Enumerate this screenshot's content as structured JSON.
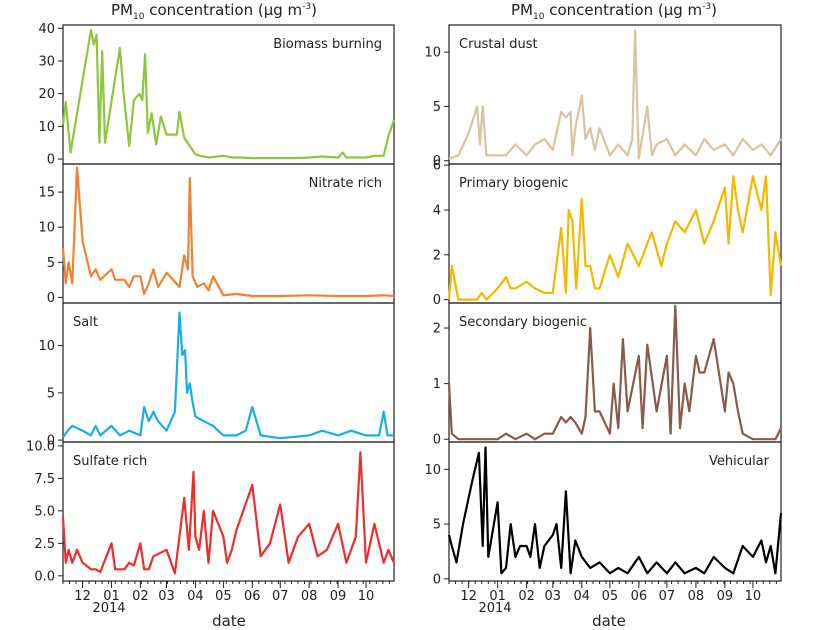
{
  "column_titles": [
    {
      "main": "PM",
      "sub": "10",
      "rest": " concentration (µg m",
      "sup": "-3",
      "close": ")"
    },
    {
      "main": "PM",
      "sub": "10",
      "rest": " concentration (µg m",
      "sup": "-3",
      "close": ")"
    }
  ],
  "x_axis": {
    "label": "date",
    "ticks": [
      "12",
      "01",
      "02",
      "03",
      "04",
      "05",
      "06",
      "07",
      "08",
      "09",
      "10"
    ],
    "year_label": "2014",
    "range": [
      "2013-11-10",
      "2014-10-31"
    ]
  },
  "chart_data": [
    {
      "type": "line",
      "title": "Biomass burning",
      "color": "#8dc63f",
      "ylim": [
        -1.5,
        41
      ],
      "yticks": [
        0,
        10,
        20,
        30,
        40
      ],
      "ytick_labels": [
        "0",
        "10",
        "20",
        "30",
        "40"
      ],
      "series": [
        {
          "x": [
            "2013-11-10",
            "2013-11-13",
            "2013-11-18",
            "2013-12-10",
            "2013-12-13",
            "2013-12-16",
            "2013-12-19",
            "2013-12-22",
            "2013-12-25",
            "2014-01-10",
            "2014-01-14",
            "2014-01-20",
            "2014-01-25",
            "2014-01-31",
            "2014-02-03",
            "2014-02-06",
            "2014-02-09",
            "2014-02-13",
            "2014-02-18",
            "2014-02-23",
            "2014-03-01",
            "2014-03-08",
            "2014-03-12",
            "2014-03-15",
            "2014-03-20",
            "2014-04-01",
            "2014-04-06",
            "2014-04-15",
            "2014-05-01",
            "2014-05-10",
            "2014-05-20",
            "2014-06-01",
            "2014-06-15",
            "2014-07-01",
            "2014-07-15",
            "2014-08-01",
            "2014-08-15",
            "2014-09-01",
            "2014-09-06",
            "2014-09-10",
            "2014-09-20",
            "2014-10-01",
            "2014-10-10",
            "2014-10-20",
            "2014-10-25",
            "2014-10-31"
          ],
          "y": [
            10.5,
            17.5,
            2,
            39.5,
            35,
            38,
            5,
            33,
            5,
            34,
            20,
            4,
            18,
            20,
            18,
            32,
            8,
            14,
            4.5,
            13,
            7.5,
            7.5,
            7.5,
            14.5,
            6.5,
            1.5,
            1,
            0.5,
            1,
            0.5,
            0.5,
            0.3,
            0.3,
            0.3,
            0.3,
            0.5,
            0.8,
            0.5,
            2,
            0.5,
            0.5,
            0.5,
            1,
            1,
            7,
            12
          ]
        }
      ]
    },
    {
      "type": "line",
      "title": "Nitrate rich",
      "color": "#f08234",
      "ylim": [
        -0.8,
        19
      ],
      "yticks": [
        0,
        5,
        10,
        15
      ],
      "ytick_labels": [
        "0",
        "5",
        "10",
        "15"
      ],
      "series": [
        {
          "x": [
            "2013-11-10",
            "2013-11-13",
            "2013-11-16",
            "2013-11-20",
            "2013-11-25",
            "2013-12-01",
            "2013-12-10",
            "2013-12-15",
            "2013-12-20",
            "2014-01-01",
            "2014-01-05",
            "2014-01-15",
            "2014-01-20",
            "2014-01-25",
            "2014-02-01",
            "2014-02-05",
            "2014-02-10",
            "2014-02-15",
            "2014-02-20",
            "2014-03-01",
            "2014-03-15",
            "2014-03-20",
            "2014-03-24",
            "2014-03-26",
            "2014-03-29",
            "2014-04-03",
            "2014-04-10",
            "2014-04-15",
            "2014-04-20",
            "2014-05-01",
            "2014-05-15",
            "2014-06-01",
            "2014-07-01",
            "2014-08-01",
            "2014-09-01",
            "2014-10-01",
            "2014-10-20",
            "2014-10-31"
          ],
          "y": [
            7,
            2,
            5,
            2,
            18.5,
            8,
            3,
            4,
            2.5,
            4,
            2.5,
            2.5,
            1.5,
            3,
            3,
            0.5,
            2,
            4,
            1.5,
            3.5,
            1.5,
            6,
            4,
            17,
            3,
            1.5,
            2,
            1,
            3,
            0.3,
            0.5,
            0.2,
            0.2,
            0.3,
            0.2,
            0.2,
            0.3,
            0.2
          ]
        }
      ]
    },
    {
      "type": "line",
      "title": "Salt",
      "color": "#1aaee6",
      "ylim": [
        -0.2,
        14.5
      ],
      "yticks": [
        0,
        5,
        10
      ],
      "ytick_labels": [
        "0",
        "5",
        "10"
      ],
      "series": [
        {
          "x": [
            "2013-11-10",
            "2013-11-15",
            "2013-11-20",
            "2013-12-01",
            "2013-12-10",
            "2013-12-15",
            "2013-12-20",
            "2014-01-01",
            "2014-01-10",
            "2014-01-20",
            "2014-02-01",
            "2014-02-05",
            "2014-02-10",
            "2014-02-15",
            "2014-02-20",
            "2014-03-01",
            "2014-03-10",
            "2014-03-15",
            "2014-03-18",
            "2014-03-21",
            "2014-03-23",
            "2014-03-26",
            "2014-03-29",
            "2014-04-01",
            "2014-04-10",
            "2014-04-20",
            "2014-05-01",
            "2014-05-15",
            "2014-05-25",
            "2014-06-01",
            "2014-06-10",
            "2014-07-01",
            "2014-08-01",
            "2014-08-15",
            "2014-09-01",
            "2014-09-15",
            "2014-10-01",
            "2014-10-15",
            "2014-10-20",
            "2014-10-24",
            "2014-10-31"
          ],
          "y": [
            0.3,
            1,
            1.5,
            1,
            0.5,
            1.5,
            0.5,
            1.5,
            0.5,
            1,
            0.5,
            3.5,
            2,
            3,
            2,
            1,
            3,
            13.5,
            9,
            9.5,
            5,
            6,
            4,
            2.5,
            2,
            1.5,
            0.5,
            0.5,
            1,
            3.5,
            0.5,
            0.2,
            0.5,
            1,
            0.5,
            1,
            0.5,
            0.5,
            3,
            0.5,
            0.5
          ]
        }
      ]
    },
    {
      "type": "line",
      "title": "Sulfate rich",
      "color": "#ee2d2d",
      "ylim": [
        -0.4,
        10.3
      ],
      "yticks": [
        0.0,
        2.5,
        5.0,
        7.5,
        10.0
      ],
      "ytick_labels": [
        "0.0",
        "2.5",
        "5.0",
        "7.5",
        "10.0"
      ],
      "series": [
        {
          "x": [
            "2013-11-10",
            "2013-11-13",
            "2013-11-16",
            "2013-11-20",
            "2013-11-25",
            "2013-12-01",
            "2013-12-10",
            "2013-12-15",
            "2013-12-20",
            "2014-01-01",
            "2014-01-05",
            "2014-01-15",
            "2014-01-20",
            "2014-01-25",
            "2014-02-01",
            "2014-02-05",
            "2014-02-10",
            "2014-02-15",
            "2014-03-01",
            "2014-03-10",
            "2014-03-20",
            "2014-03-25",
            "2014-03-30",
            "2014-04-01",
            "2014-04-05",
            "2014-04-10",
            "2014-04-15",
            "2014-04-20",
            "2014-05-01",
            "2014-05-05",
            "2014-05-10",
            "2014-05-15",
            "2014-06-01",
            "2014-06-10",
            "2014-06-20",
            "2014-07-01",
            "2014-07-10",
            "2014-07-20",
            "2014-08-01",
            "2014-08-10",
            "2014-08-20",
            "2014-09-01",
            "2014-09-10",
            "2014-09-20",
            "2014-09-25",
            "2014-10-01",
            "2014-10-10",
            "2014-10-20",
            "2014-10-25",
            "2014-10-31"
          ],
          "y": [
            4.5,
            1,
            2,
            1,
            2,
            1,
            0.5,
            0.5,
            0.3,
            2.5,
            0.5,
            0.5,
            1,
            0.8,
            2.5,
            0.5,
            0.5,
            1.5,
            2,
            0.2,
            6,
            2,
            8,
            3,
            2,
            5,
            1,
            5,
            3,
            1,
            2,
            3.5,
            7,
            1.5,
            2.5,
            5.5,
            1,
            3,
            4,
            1.5,
            2,
            4,
            1,
            3,
            9.5,
            1,
            4,
            1,
            2,
            1
          ]
        }
      ]
    },
    {
      "type": "line",
      "title": "Crustal dust",
      "color": "#d9c4a1",
      "ylim": [
        -0.3,
        12.5
      ],
      "yticks": [
        0,
        5,
        10
      ],
      "ytick_labels": [
        "0",
        "5",
        "10"
      ],
      "series": [
        {
          "x": [
            "2013-11-10",
            "2013-11-20",
            "2013-12-01",
            "2013-12-10",
            "2013-12-13",
            "2013-12-16",
            "2013-12-20",
            "2014-01-01",
            "2014-01-10",
            "2014-01-20",
            "2014-02-01",
            "2014-02-10",
            "2014-02-20",
            "2014-03-01",
            "2014-03-10",
            "2014-03-15",
            "2014-03-20",
            "2014-03-22",
            "2014-03-25",
            "2014-04-01",
            "2014-04-05",
            "2014-04-10",
            "2014-04-15",
            "2014-04-20",
            "2014-05-01",
            "2014-05-10",
            "2014-05-20",
            "2014-05-25",
            "2014-05-28",
            "2014-06-01",
            "2014-06-10",
            "2014-06-15",
            "2014-06-20",
            "2014-07-01",
            "2014-07-10",
            "2014-07-20",
            "2014-08-01",
            "2014-08-10",
            "2014-08-20",
            "2014-09-01",
            "2014-09-10",
            "2014-09-20",
            "2014-10-01",
            "2014-10-10",
            "2014-10-20",
            "2014-10-31"
          ],
          "y": [
            0.2,
            0.5,
            2.5,
            5,
            1.5,
            5,
            0.5,
            0.5,
            0.5,
            1.5,
            0.5,
            1.5,
            2,
            1,
            4.5,
            4,
            4.5,
            0.5,
            3,
            6,
            2,
            3,
            1,
            3,
            0.5,
            1.5,
            0.5,
            2,
            12,
            0.2,
            5,
            0.5,
            1.5,
            2,
            0.5,
            1.5,
            0.5,
            2,
            1,
            1.5,
            0.5,
            2,
            1,
            1.5,
            0.5,
            2
          ]
        }
      ]
    },
    {
      "type": "line",
      "title": "Primary biogenic",
      "color": "#f5b800",
      "ylim": [
        -0.15,
        6.05
      ],
      "yticks": [
        0,
        2,
        4,
        6
      ],
      "ytick_labels": [
        "0",
        "2",
        "4",
        "6"
      ],
      "series": [
        {
          "x": [
            "2013-11-10",
            "2013-11-13",
            "2013-11-20",
            "2013-12-10",
            "2013-12-15",
            "2013-12-20",
            "2014-01-01",
            "2014-01-10",
            "2014-01-15",
            "2014-01-20",
            "2014-02-01",
            "2014-02-10",
            "2014-02-20",
            "2014-03-01",
            "2014-03-10",
            "2014-03-15",
            "2014-03-18",
            "2014-03-22",
            "2014-03-26",
            "2014-04-01",
            "2014-04-05",
            "2014-04-10",
            "2014-04-15",
            "2014-04-20",
            "2014-05-01",
            "2014-05-10",
            "2014-05-20",
            "2014-06-01",
            "2014-06-10",
            "2014-06-15",
            "2014-06-25",
            "2014-07-01",
            "2014-07-10",
            "2014-07-20",
            "2014-08-01",
            "2014-08-10",
            "2014-08-20",
            "2014-09-01",
            "2014-09-05",
            "2014-09-10",
            "2014-09-15",
            "2014-09-20",
            "2014-10-01",
            "2014-10-10",
            "2014-10-15",
            "2014-10-20",
            "2014-10-25",
            "2014-10-31"
          ],
          "y": [
            0,
            1.5,
            0,
            0,
            0.3,
            0,
            0.5,
            1,
            0.5,
            0.5,
            0.8,
            0.5,
            0.3,
            0.3,
            3.2,
            0.3,
            4,
            3.5,
            0.5,
            4.5,
            1.5,
            1.5,
            0.5,
            0.5,
            2,
            1,
            2.5,
            1.5,
            2.5,
            3,
            1.5,
            2.5,
            3.5,
            3,
            4,
            2.5,
            3.5,
            5,
            2.5,
            5.5,
            4,
            3,
            5.5,
            4,
            5.5,
            0.2,
            3,
            1.5
          ]
        }
      ]
    },
    {
      "type": "line",
      "title": "Secondary biogenic",
      "color": "#8c5a4b",
      "ylim": [
        -0.05,
        2.45
      ],
      "yticks": [
        0,
        1,
        2
      ],
      "ytick_labels": [
        "0",
        "1",
        "2"
      ],
      "series": [
        {
          "x": [
            "2013-11-10",
            "2013-11-13",
            "2013-11-20",
            "2013-12-01",
            "2013-12-15",
            "2014-01-01",
            "2014-01-10",
            "2014-01-20",
            "2014-02-01",
            "2014-02-10",
            "2014-02-20",
            "2014-03-01",
            "2014-03-10",
            "2014-03-15",
            "2014-03-20",
            "2014-03-25",
            "2014-04-01",
            "2014-04-05",
            "2014-04-10",
            "2014-04-15",
            "2014-04-20",
            "2014-05-01",
            "2014-05-05",
            "2014-05-10",
            "2014-05-15",
            "2014-05-20",
            "2014-06-01",
            "2014-06-05",
            "2014-06-10",
            "2014-06-20",
            "2014-07-01",
            "2014-07-05",
            "2014-07-10",
            "2014-07-15",
            "2014-07-20",
            "2014-07-25",
            "2014-08-01",
            "2014-08-05",
            "2014-08-10",
            "2014-08-20",
            "2014-09-01",
            "2014-09-05",
            "2014-09-10",
            "2014-09-15",
            "2014-09-20",
            "2014-10-01",
            "2014-10-10",
            "2014-10-25",
            "2014-10-31"
          ],
          "y": [
            1,
            0.1,
            0,
            0,
            0,
            0,
            0.1,
            0,
            0.1,
            0,
            0.1,
            0.1,
            0.4,
            0.3,
            0.4,
            0.3,
            0.1,
            0.4,
            2,
            0.5,
            0.5,
            0.1,
            1,
            0.2,
            1.8,
            0.5,
            1.5,
            0.2,
            1.7,
            0.5,
            1.5,
            0.1,
            2.4,
            0.2,
            1,
            0.5,
            1.5,
            1.2,
            1.2,
            1.8,
            0.5,
            1.2,
            1,
            0.5,
            0.1,
            0,
            0,
            0,
            0.2
          ]
        }
      ]
    },
    {
      "type": "line",
      "title": "Vehicular",
      "color": "#000000",
      "ylim": [
        -0.2,
        12.5
      ],
      "yticks": [
        0,
        5,
        10
      ],
      "ytick_labels": [
        "0",
        "5",
        "10"
      ],
      "series": [
        {
          "x": [
            "2013-11-10",
            "2013-11-13",
            "2013-11-18",
            "2013-11-25",
            "2013-12-05",
            "2013-12-12",
            "2013-12-16",
            "2013-12-19",
            "2013-12-22",
            "2014-01-01",
            "2014-01-05",
            "2014-01-10",
            "2014-01-15",
            "2014-01-20",
            "2014-01-25",
            "2014-02-01",
            "2014-02-05",
            "2014-02-10",
            "2014-02-15",
            "2014-02-20",
            "2014-03-01",
            "2014-03-05",
            "2014-03-10",
            "2014-03-15",
            "2014-03-20",
            "2014-03-25",
            "2014-04-01",
            "2014-04-10",
            "2014-04-20",
            "2014-05-01",
            "2014-05-10",
            "2014-05-20",
            "2014-06-01",
            "2014-06-10",
            "2014-06-20",
            "2014-07-01",
            "2014-07-10",
            "2014-07-20",
            "2014-08-01",
            "2014-08-10",
            "2014-08-20",
            "2014-09-01",
            "2014-09-10",
            "2014-09-20",
            "2014-10-01",
            "2014-10-10",
            "2014-10-15",
            "2014-10-20",
            "2014-10-25",
            "2014-10-31"
          ],
          "y": [
            4,
            3,
            1.5,
            5,
            9,
            11.5,
            3,
            12,
            2,
            7,
            0.5,
            1,
            5,
            2,
            3,
            3,
            2,
            5,
            1,
            3,
            4,
            5,
            1,
            8,
            0.5,
            3.5,
            2,
            1,
            1.5,
            0.5,
            1,
            0.5,
            2,
            0.5,
            1.5,
            0.5,
            1.5,
            0.5,
            1,
            0.5,
            2,
            1,
            0.5,
            3,
            2,
            3.5,
            1.5,
            3,
            0.5,
            6
          ]
        }
      ]
    }
  ]
}
